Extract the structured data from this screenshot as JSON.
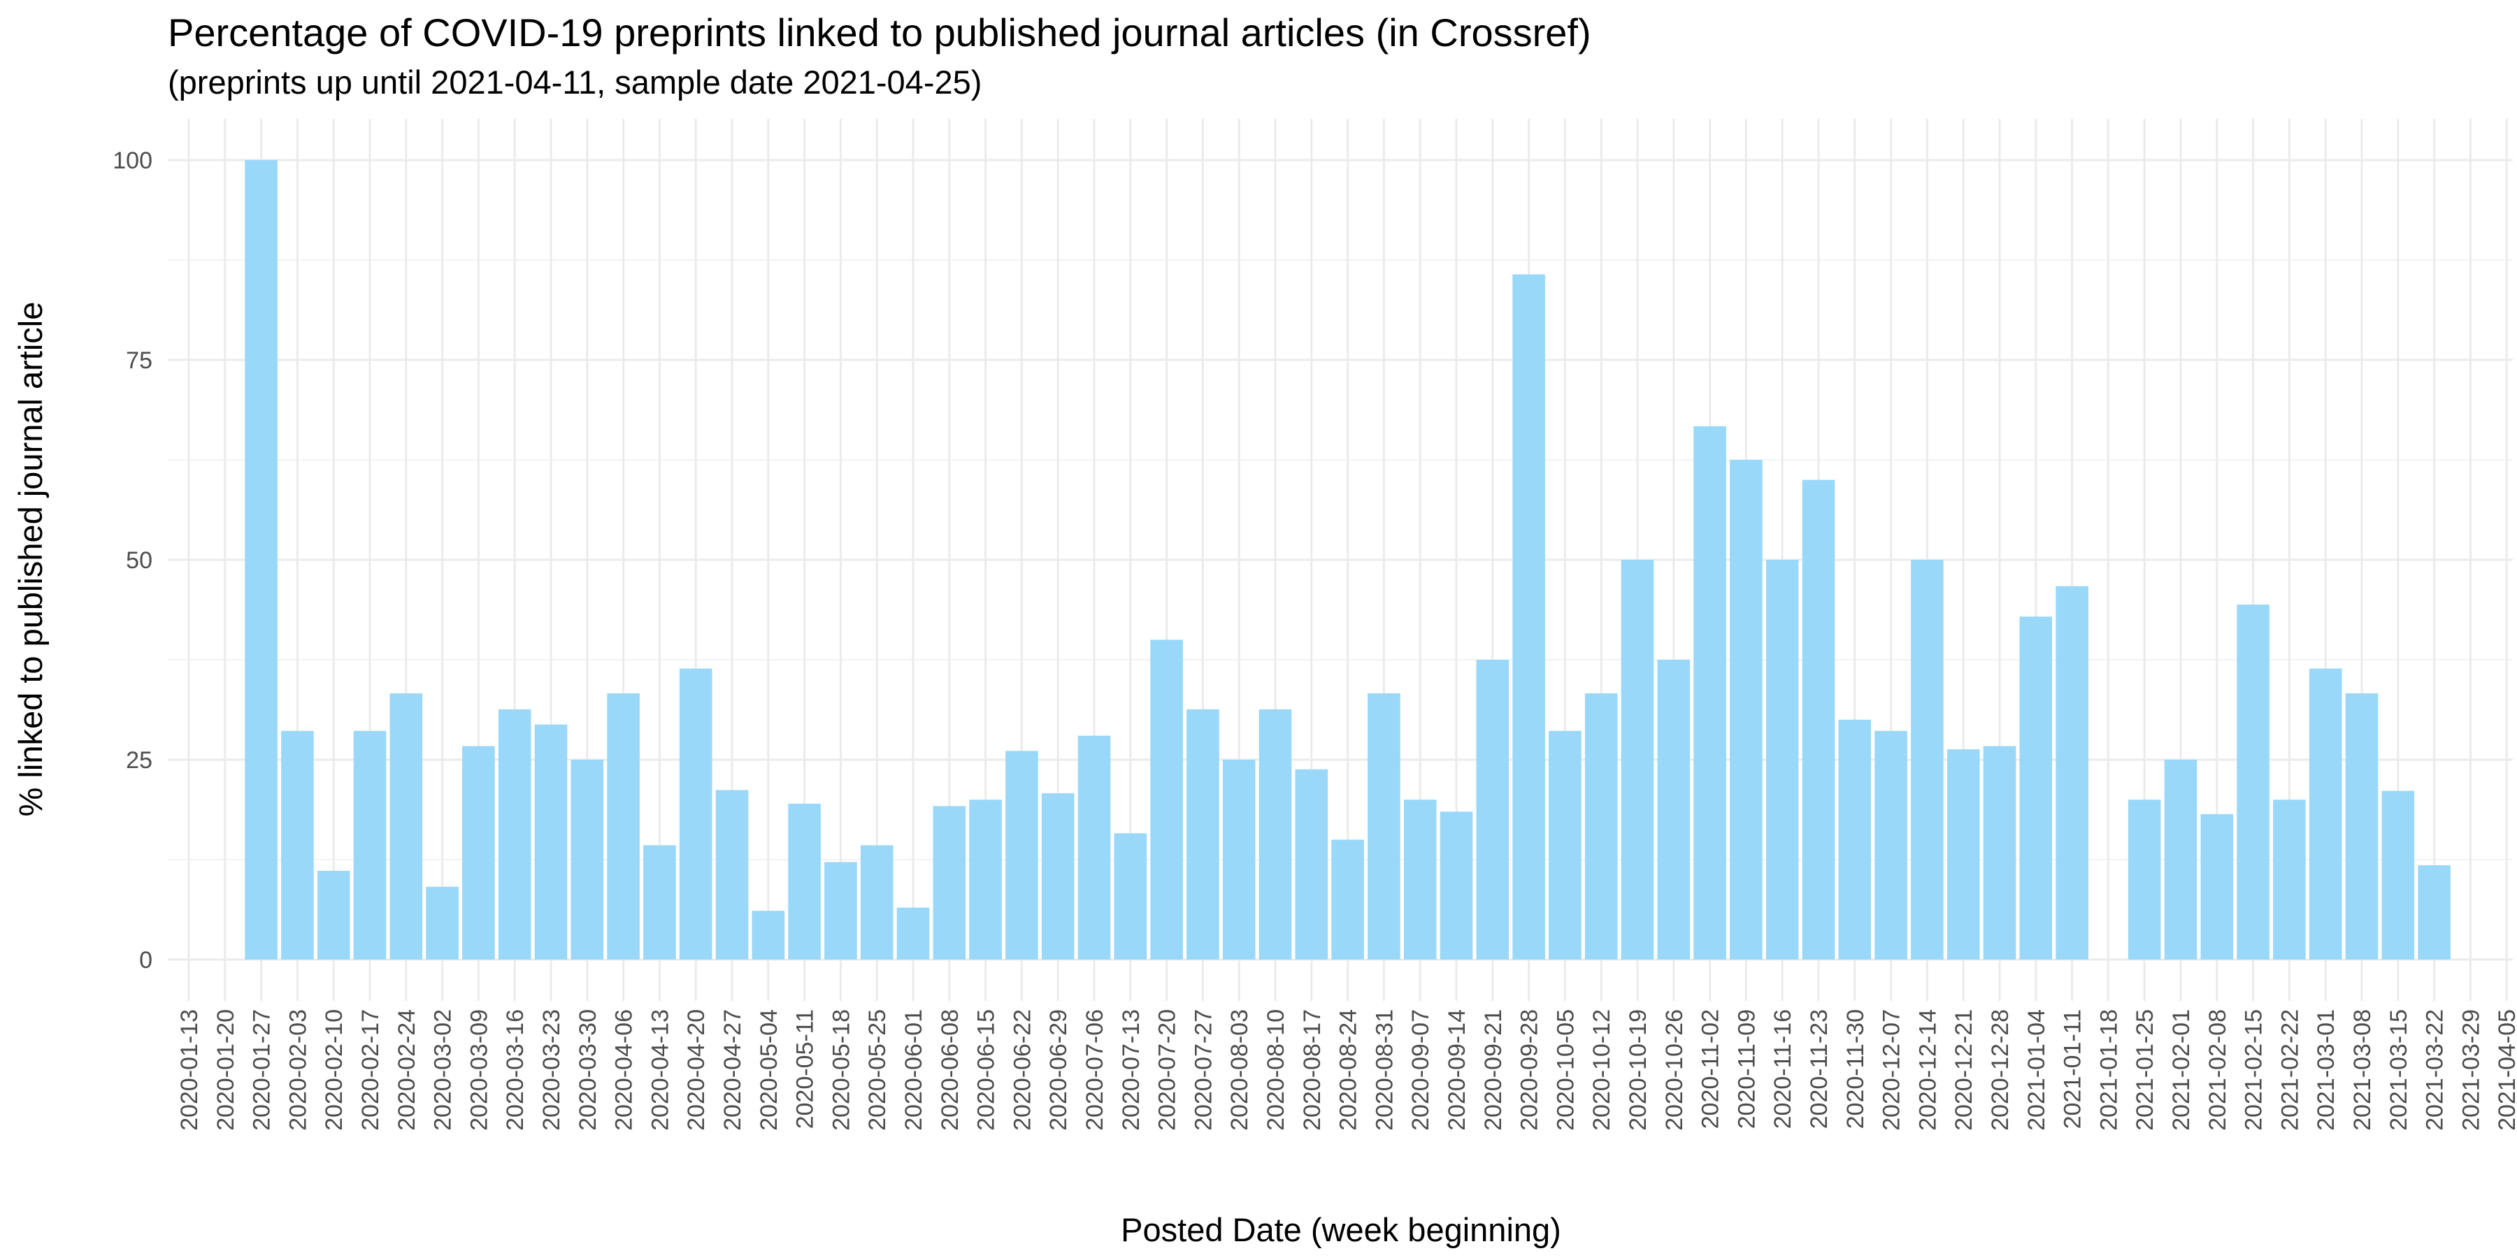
{
  "chart_data": {
    "type": "bar",
    "title": "Percentage of COVID-19 preprints linked to published journal articles (in Crossref)",
    "subtitle": "(preprints up until 2021-04-11, sample date 2021-04-25)",
    "xlabel": "Posted Date (week beginning)",
    "ylabel": "% linked to published journal article",
    "ylim": [
      0,
      100
    ],
    "yticks": [
      0,
      25,
      50,
      75,
      100
    ],
    "grid": true,
    "bar_color": "#99d8f9",
    "categories": [
      "2020-01-13",
      "2020-01-20",
      "2020-01-27",
      "2020-02-03",
      "2020-02-10",
      "2020-02-17",
      "2020-02-24",
      "2020-03-02",
      "2020-03-09",
      "2020-03-16",
      "2020-03-23",
      "2020-03-30",
      "2020-04-06",
      "2020-04-13",
      "2020-04-20",
      "2020-04-27",
      "2020-05-04",
      "2020-05-11",
      "2020-05-18",
      "2020-05-25",
      "2020-06-01",
      "2020-06-08",
      "2020-06-15",
      "2020-06-22",
      "2020-06-29",
      "2020-07-06",
      "2020-07-13",
      "2020-07-20",
      "2020-07-27",
      "2020-08-03",
      "2020-08-10",
      "2020-08-17",
      "2020-08-24",
      "2020-08-31",
      "2020-09-07",
      "2020-09-14",
      "2020-09-21",
      "2020-09-28",
      "2020-10-05",
      "2020-10-12",
      "2020-10-19",
      "2020-10-26",
      "2020-11-02",
      "2020-11-09",
      "2020-11-16",
      "2020-11-23",
      "2020-11-30",
      "2020-12-07",
      "2020-12-14",
      "2020-12-21",
      "2020-12-28",
      "2021-01-04",
      "2021-01-11",
      "2021-01-18",
      "2021-01-25",
      "2021-02-01",
      "2021-02-08",
      "2021-02-15",
      "2021-02-22",
      "2021-03-01",
      "2021-03-08",
      "2021-03-15",
      "2021-03-22",
      "2021-03-29",
      "2021-04-05"
    ],
    "values": [
      null,
      null,
      100,
      28.6,
      11.1,
      28.6,
      33.3,
      9.1,
      26.7,
      31.3,
      29.4,
      25,
      33.3,
      14.3,
      36.4,
      21.2,
      6.1,
      19.5,
      12.2,
      14.3,
      6.5,
      19.2,
      20,
      26.1,
      20.8,
      28,
      15.8,
      40,
      31.3,
      25,
      31.3,
      23.8,
      15,
      33.3,
      20,
      18.5,
      37.5,
      85.7,
      28.6,
      33.3,
      50,
      37.5,
      66.7,
      62.5,
      50,
      60,
      30,
      28.6,
      50,
      26.3,
      26.7,
      42.9,
      46.7,
      null,
      20,
      25,
      18.2,
      44.4,
      20,
      36.4,
      33.3,
      21.1,
      11.8,
      null,
      null
    ]
  }
}
